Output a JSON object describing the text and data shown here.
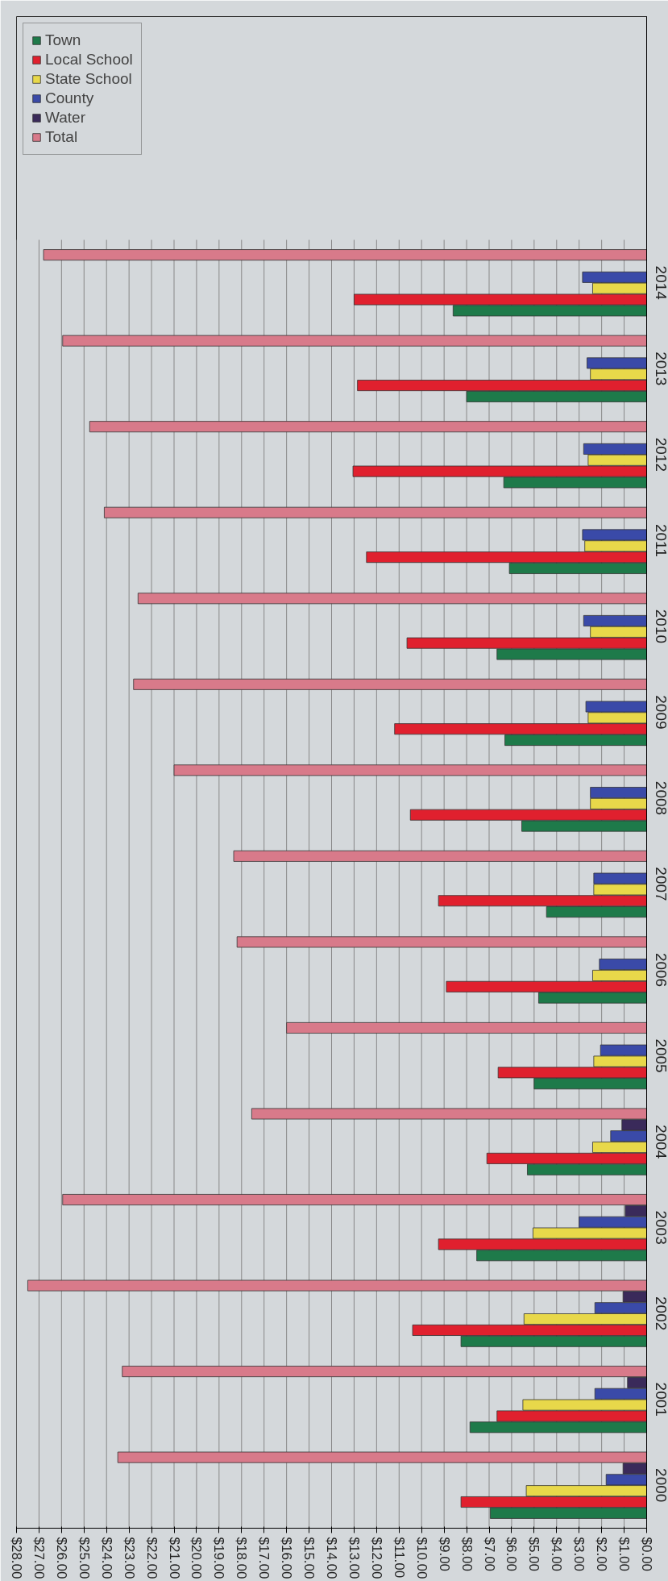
{
  "chart_data": {
    "type": "bar",
    "orientation": "horizontal",
    "categories": [
      "2014",
      "2013",
      "2012",
      "2011",
      "2010",
      "2009",
      "2008",
      "2007",
      "2006",
      "2005",
      "2004",
      "2003",
      "2002",
      "2001",
      "2000"
    ],
    "series": [
      {
        "name": "Town",
        "color": "#1e7a4a",
        "values": [
          8.6,
          8.0,
          6.35,
          6.1,
          6.65,
          6.3,
          5.55,
          4.45,
          4.8,
          5.0,
          5.3,
          7.55,
          8.25,
          7.85,
          6.95
        ]
      },
      {
        "name": "Local School",
        "color": "#e0202e",
        "values": [
          13.0,
          12.85,
          13.05,
          12.45,
          10.65,
          11.2,
          10.5,
          9.25,
          8.9,
          6.6,
          7.1,
          9.25,
          10.4,
          6.65,
          8.25
        ]
      },
      {
        "name": "State School",
        "color": "#e8d84a",
        "values": [
          2.4,
          2.5,
          2.6,
          2.75,
          2.5,
          2.6,
          2.5,
          2.35,
          2.4,
          2.35,
          2.4,
          5.05,
          5.45,
          5.5,
          5.35
        ]
      },
      {
        "name": "County",
        "color": "#3a4aa8",
        "values": [
          2.85,
          2.65,
          2.8,
          2.85,
          2.8,
          2.7,
          2.5,
          2.35,
          2.1,
          2.05,
          1.6,
          3.0,
          2.3,
          2.3,
          1.8
        ]
      },
      {
        "name": "Water",
        "color": "#3a2a5a",
        "values": [
          null,
          null,
          null,
          null,
          null,
          null,
          null,
          null,
          null,
          null,
          1.1,
          0.95,
          1.05,
          0.85,
          1.05
        ]
      },
      {
        "name": "Total",
        "color": "#d87a8a",
        "values": [
          26.8,
          25.95,
          24.75,
          24.1,
          22.6,
          22.8,
          21.0,
          18.35,
          18.2,
          16.0,
          17.55,
          25.95,
          27.5,
          23.3,
          23.5
        ]
      }
    ],
    "xlim": [
      28,
      0
    ],
    "xticks": [
      {
        "value": 28,
        "label": "$28.00"
      },
      {
        "value": 27,
        "label": "$27.00"
      },
      {
        "value": 26,
        "label": "$26.00"
      },
      {
        "value": 25,
        "label": "$25.00"
      },
      {
        "value": 24,
        "label": "$24.00"
      },
      {
        "value": 23,
        "label": "$23.00"
      },
      {
        "value": 22,
        "label": "$22.00"
      },
      {
        "value": 21,
        "label": "$21.00"
      },
      {
        "value": 20,
        "label": "$20.00"
      },
      {
        "value": 19,
        "label": "$19.00"
      },
      {
        "value": 18,
        "label": "$18.00"
      },
      {
        "value": 17,
        "label": "$17.00"
      },
      {
        "value": 16,
        "label": "$16.00"
      },
      {
        "value": 15,
        "label": "$15.00"
      },
      {
        "value": 14,
        "label": "$14.00"
      },
      {
        "value": 13,
        "label": "$13.00"
      },
      {
        "value": 12,
        "label": "$12.00"
      },
      {
        "value": 11,
        "label": "$11.00"
      },
      {
        "value": 10,
        "label": "$10.00"
      },
      {
        "value": 9,
        "label": "$9.00"
      },
      {
        "value": 8,
        "label": "$8.00"
      },
      {
        "value": 7,
        "label": "$7.00"
      },
      {
        "value": 6,
        "label": "$6.00"
      },
      {
        "value": 5,
        "label": "$5.00"
      },
      {
        "value": 4,
        "label": "$4.00"
      },
      {
        "value": 3,
        "label": "$3.00"
      },
      {
        "value": 2,
        "label": "$2.00"
      },
      {
        "value": 1,
        "label": "$1.00"
      },
      {
        "value": 0,
        "label": "$0.00"
      }
    ],
    "grid": "x",
    "legend": "top left"
  }
}
